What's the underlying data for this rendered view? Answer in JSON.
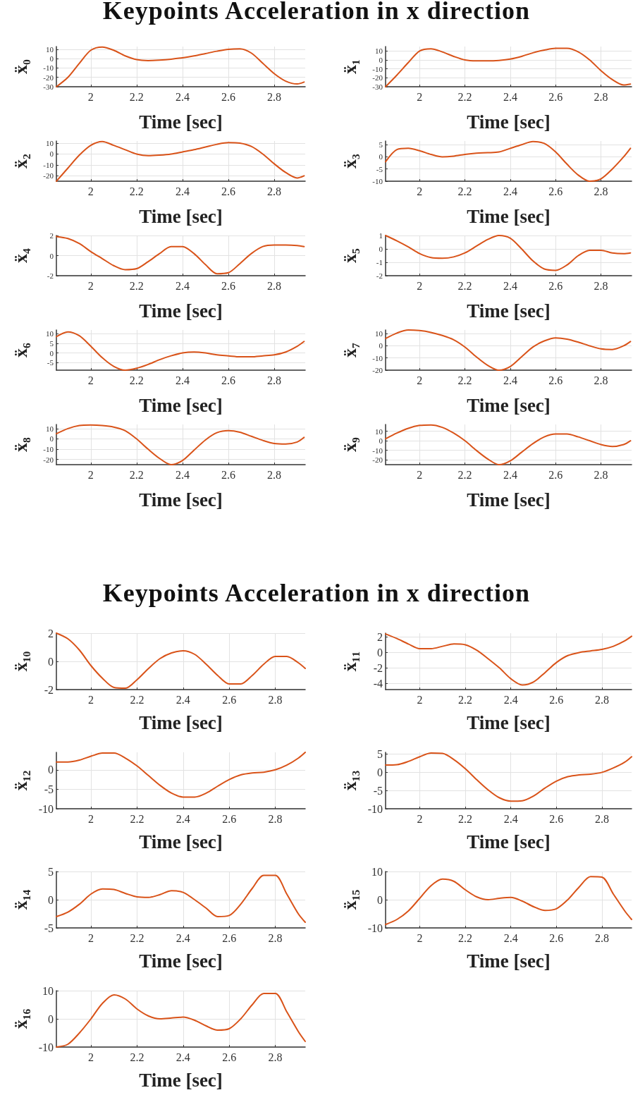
{
  "chart_data": [
    {
      "type": "line",
      "title": "Keypoints Acceleration in x direction",
      "xlabel": "Time [sec]",
      "ylabel": "ẍ₀",
      "x": [
        1.85,
        1.9,
        1.95,
        2.0,
        2.05,
        2.1,
        2.15,
        2.2,
        2.25,
        2.3,
        2.35,
        2.4,
        2.45,
        2.5,
        2.55,
        2.6,
        2.65,
        2.7,
        2.75,
        2.8,
        2.85,
        2.9,
        2.93
      ],
      "series": [
        {
          "color": "#d95319",
          "values": [
            -30,
            -20,
            -5,
            9,
            12.5,
            9,
            3,
            -1,
            -2,
            -1.5,
            -0.5,
            1,
            3,
            5.5,
            8,
            10,
            10.5,
            6,
            -5,
            -16,
            -24,
            -27,
            -25
          ]
        }
      ],
      "xlim": [
        1.85,
        2.935
      ],
      "xticks": [
        2,
        2.2,
        2.4,
        2.6,
        2.8
      ],
      "ylim": [
        -30,
        13
      ],
      "yticks": [
        -30,
        -20,
        -10,
        0,
        10
      ],
      "grid": true,
      "marker": "none",
      "line_style": "solid"
    },
    {
      "type": "line",
      "xlabel": "Time [sec]",
      "ylabel": "ẍ₁",
      "x": [
        1.85,
        1.9,
        1.95,
        2.0,
        2.05,
        2.1,
        2.15,
        2.2,
        2.25,
        2.3,
        2.35,
        2.4,
        2.45,
        2.5,
        2.55,
        2.6,
        2.65,
        2.7,
        2.75,
        2.8,
        2.85,
        2.9,
        2.93
      ],
      "series": [
        {
          "color": "#d95319",
          "values": [
            -30,
            -17,
            -3,
            10,
            12.5,
            9,
            4,
            0,
            -1,
            -1,
            -0.5,
            1,
            4,
            8,
            11,
            13,
            13,
            9,
            0,
            -12,
            -22,
            -28,
            -27
          ]
        }
      ],
      "xlim": [
        1.85,
        2.935
      ],
      "xticks": [
        2,
        2.2,
        2.4,
        2.6,
        2.8
      ],
      "ylim": [
        -30,
        15
      ],
      "yticks": [
        -30,
        -20,
        -10,
        0,
        10
      ],
      "grid": true,
      "marker": "none",
      "line_style": "solid"
    },
    {
      "type": "line",
      "xlabel": "Time [sec]",
      "ylabel": "ẍ₂",
      "x": [
        1.85,
        1.9,
        1.95,
        2.0,
        2.05,
        2.1,
        2.15,
        2.2,
        2.25,
        2.3,
        2.35,
        2.4,
        2.45,
        2.5,
        2.55,
        2.6,
        2.65,
        2.7,
        2.75,
        2.8,
        2.85,
        2.9,
        2.93
      ],
      "series": [
        {
          "color": "#d95319",
          "values": [
            -25,
            -13,
            -1,
            8,
            11.5,
            8,
            4,
            0,
            -1.5,
            -1,
            0,
            2,
            4,
            6.5,
            9,
            10.5,
            10,
            7,
            0,
            -9,
            -17,
            -22,
            -20
          ]
        }
      ],
      "xlim": [
        1.85,
        2.935
      ],
      "xticks": [
        2,
        2.2,
        2.4,
        2.6,
        2.8
      ],
      "ylim": [
        -25,
        12
      ],
      "yticks": [
        -20,
        -10,
        0,
        10
      ],
      "grid": true,
      "marker": "none",
      "line_style": "solid"
    },
    {
      "type": "line",
      "xlabel": "Time [sec]",
      "ylabel": "ẍ₃",
      "x": [
        1.85,
        1.9,
        1.95,
        2.0,
        2.05,
        2.1,
        2.15,
        2.2,
        2.25,
        2.3,
        2.35,
        2.4,
        2.45,
        2.5,
        2.55,
        2.6,
        2.65,
        2.7,
        2.75,
        2.8,
        2.85,
        2.9,
        2.93
      ],
      "series": [
        {
          "color": "#d95319",
          "values": [
            -2,
            3,
            3.5,
            2.5,
            1,
            0,
            0.3,
            1,
            1.5,
            1.7,
            2,
            3.5,
            5,
            6.3,
            5.5,
            2,
            -3,
            -7.5,
            -10,
            -9,
            -5,
            0,
            3.5
          ]
        }
      ],
      "xlim": [
        1.85,
        2.935
      ],
      "xticks": [
        2,
        2.2,
        2.4,
        2.6,
        2.8
      ],
      "ylim": [
        -10,
        6.5
      ],
      "yticks": [
        -10,
        -5,
        0,
        5
      ],
      "grid": true,
      "marker": "none",
      "line_style": "solid"
    },
    {
      "type": "line",
      "xlabel": "Time [sec]",
      "ylabel": "ẍ₄",
      "x": [
        1.85,
        1.9,
        1.95,
        2.0,
        2.05,
        2.1,
        2.15,
        2.2,
        2.25,
        2.3,
        2.35,
        2.4,
        2.45,
        2.5,
        2.55,
        2.6,
        2.65,
        2.7,
        2.75,
        2.8,
        2.85,
        2.9,
        2.93
      ],
      "series": [
        {
          "color": "#d95319",
          "values": [
            1.9,
            1.7,
            1.2,
            0.4,
            -0.3,
            -1,
            -1.4,
            -1.3,
            -0.6,
            0.2,
            0.9,
            0.9,
            0.2,
            -0.9,
            -1.8,
            -1.7,
            -0.8,
            0.2,
            0.9,
            1.05,
            1.05,
            1,
            0.9
          ]
        }
      ],
      "xlim": [
        1.85,
        2.935
      ],
      "xticks": [
        2,
        2.2,
        2.4,
        2.6,
        2.8
      ],
      "ylim": [
        -2,
        2
      ],
      "yticks": [
        -2,
        0,
        2
      ],
      "grid": true,
      "marker": "none",
      "line_style": "solid"
    },
    {
      "type": "line",
      "xlabel": "Time [sec]",
      "ylabel": "ẍ₅",
      "x": [
        1.85,
        1.9,
        1.95,
        2.0,
        2.05,
        2.1,
        2.15,
        2.2,
        2.25,
        2.3,
        2.35,
        2.4,
        2.45,
        2.5,
        2.55,
        2.6,
        2.65,
        2.7,
        2.75,
        2.8,
        2.85,
        2.9,
        2.93
      ],
      "series": [
        {
          "color": "#d95319",
          "values": [
            1,
            0.6,
            0.15,
            -0.35,
            -0.65,
            -0.7,
            -0.6,
            -0.3,
            0.2,
            0.7,
            1,
            0.8,
            0,
            -0.9,
            -1.5,
            -1.6,
            -1.2,
            -0.5,
            -0.1,
            -0.1,
            -0.3,
            -0.35,
            -0.3
          ]
        }
      ],
      "xlim": [
        1.85,
        2.935
      ],
      "xticks": [
        2,
        2.2,
        2.4,
        2.6,
        2.8
      ],
      "ylim": [
        -2,
        1
      ],
      "yticks": [
        -2,
        -1,
        0,
        1
      ],
      "grid": true,
      "marker": "none",
      "line_style": "solid"
    },
    {
      "type": "line",
      "xlabel": "Time [sec]",
      "ylabel": "ẍ₆",
      "x": [
        1.85,
        1.9,
        1.95,
        2.0,
        2.05,
        2.1,
        2.15,
        2.2,
        2.25,
        2.3,
        2.35,
        2.4,
        2.45,
        2.5,
        2.55,
        2.6,
        2.65,
        2.7,
        2.75,
        2.8,
        2.85,
        2.9,
        2.93
      ],
      "series": [
        {
          "color": "#d95319",
          "values": [
            8.5,
            11,
            9,
            3.5,
            -2.5,
            -7,
            -9,
            -8,
            -6,
            -3.5,
            -1.5,
            0,
            0.5,
            0,
            -1,
            -1.5,
            -2,
            -2,
            -1.5,
            -1,
            0.5,
            3.5,
            6
          ]
        }
      ],
      "xlim": [
        1.85,
        2.935
      ],
      "xticks": [
        2,
        2.2,
        2.4,
        2.6,
        2.8
      ],
      "ylim": [
        -9,
        12
      ],
      "yticks": [
        -5,
        0,
        5,
        10
      ],
      "grid": true,
      "marker": "none",
      "line_style": "solid"
    },
    {
      "type": "line",
      "xlabel": "Time [sec]",
      "ylabel": "ẍ₇",
      "x": [
        1.85,
        1.9,
        1.95,
        2.0,
        2.05,
        2.1,
        2.15,
        2.2,
        2.25,
        2.3,
        2.35,
        2.4,
        2.45,
        2.5,
        2.55,
        2.6,
        2.65,
        2.7,
        2.75,
        2.8,
        2.85,
        2.9,
        2.93
      ],
      "series": [
        {
          "color": "#d95319",
          "values": [
            6,
            10.5,
            13,
            12.5,
            11,
            8.5,
            5,
            -1,
            -9,
            -16,
            -20,
            -17,
            -9,
            -1,
            4,
            6.5,
            5.5,
            3,
            0,
            -2.5,
            -3,
            0,
            3.5
          ]
        }
      ],
      "xlim": [
        1.85,
        2.935
      ],
      "xticks": [
        2,
        2.2,
        2.4,
        2.6,
        2.8
      ],
      "ylim": [
        -20,
        13
      ],
      "yticks": [
        -20,
        -10,
        0,
        10
      ],
      "grid": true,
      "marker": "none",
      "line_style": "solid"
    },
    {
      "type": "line",
      "xlabel": "Time [sec]",
      "ylabel": "ẍ₈",
      "x": [
        1.85,
        1.9,
        1.95,
        2.0,
        2.05,
        2.1,
        2.15,
        2.2,
        2.25,
        2.3,
        2.35,
        2.4,
        2.45,
        2.5,
        2.55,
        2.6,
        2.65,
        2.7,
        2.75,
        2.8,
        2.85,
        2.9,
        2.93
      ],
      "series": [
        {
          "color": "#d95319",
          "values": [
            5,
            10,
            13,
            13.5,
            13,
            11.5,
            8,
            0,
            -10,
            -19,
            -25,
            -21,
            -11,
            -1,
            6,
            8,
            6.5,
            2.5,
            -1.5,
            -4.5,
            -5,
            -3,
            1.5
          ]
        }
      ],
      "xlim": [
        1.85,
        2.935
      ],
      "xticks": [
        2,
        2.2,
        2.4,
        2.6,
        2.8
      ],
      "ylim": [
        -25,
        14
      ],
      "yticks": [
        -20,
        -10,
        0,
        10
      ],
      "grid": true,
      "marker": "none",
      "line_style": "solid"
    },
    {
      "type": "line",
      "xlabel": "Time [sec]",
      "ylabel": "ẍ₉",
      "x": [
        1.85,
        1.9,
        1.95,
        2.0,
        2.05,
        2.1,
        2.15,
        2.2,
        2.25,
        2.3,
        2.35,
        2.4,
        2.45,
        2.5,
        2.55,
        2.6,
        2.65,
        2.7,
        2.75,
        2.8,
        2.85,
        2.9,
        2.93
      ],
      "series": [
        {
          "color": "#d95319",
          "values": [
            2,
            8,
            13,
            16,
            16.5,
            14,
            8,
            0,
            -10,
            -19,
            -25,
            -21,
            -12,
            -3,
            4,
            7,
            7,
            4,
            0,
            -4,
            -6,
            -4,
            0
          ]
        }
      ],
      "xlim": [
        1.85,
        2.935
      ],
      "xticks": [
        2,
        2.2,
        2.4,
        2.6,
        2.8
      ],
      "ylim": [
        -25,
        17
      ],
      "yticks": [
        -20,
        -10,
        0,
        10
      ],
      "grid": true,
      "marker": "none",
      "line_style": "solid"
    },
    {
      "type": "line",
      "title": "Keypoints Acceleration in x direction",
      "xlabel": "Time [sec]",
      "ylabel": "ẍ₁₀",
      "x": [
        1.85,
        1.9,
        1.95,
        2.0,
        2.05,
        2.1,
        2.15,
        2.2,
        2.25,
        2.3,
        2.35,
        2.4,
        2.45,
        2.5,
        2.55,
        2.6,
        2.65,
        2.7,
        2.75,
        2.8,
        2.85,
        2.9,
        2.93
      ],
      "series": [
        {
          "color": "#d95319",
          "values": [
            2,
            1.6,
            0.8,
            -0.3,
            -1.2,
            -1.85,
            -1.9,
            -1.3,
            -0.5,
            0.2,
            0.6,
            0.75,
            0.5,
            -0.2,
            -1,
            -1.6,
            -1.6,
            -1,
            -0.2,
            0.35,
            0.35,
            -0.1,
            -0.5
          ]
        }
      ],
      "xlim": [
        1.85,
        2.93
      ],
      "xticks": [
        2,
        2.2,
        2.4,
        2.6,
        2.8
      ],
      "ylim": [
        -2,
        2
      ],
      "yticks": [
        -2,
        0,
        2
      ],
      "grid": true,
      "marker": "none",
      "line_style": "solid"
    },
    {
      "type": "line",
      "xlabel": "Time [sec]",
      "ylabel": "ẍ₁₁",
      "x": [
        1.85,
        1.9,
        1.95,
        2.0,
        2.05,
        2.1,
        2.15,
        2.2,
        2.25,
        2.3,
        2.35,
        2.4,
        2.45,
        2.5,
        2.55,
        2.6,
        2.65,
        2.7,
        2.75,
        2.8,
        2.85,
        2.9,
        2.93
      ],
      "series": [
        {
          "color": "#d95319",
          "values": [
            2.4,
            1.8,
            1.1,
            0.5,
            0.5,
            0.8,
            1.1,
            1,
            0.3,
            -0.8,
            -2,
            -3.4,
            -4.2,
            -3.8,
            -2.6,
            -1.3,
            -0.4,
            0,
            0.2,
            0.4,
            0.8,
            1.5,
            2.1
          ]
        }
      ],
      "xlim": [
        1.85,
        2.93
      ],
      "xticks": [
        2,
        2.2,
        2.4,
        2.6,
        2.8
      ],
      "ylim": [
        -4.8,
        2.5
      ],
      "yticks": [
        -4,
        -2,
        0,
        2
      ],
      "grid": true,
      "marker": "none",
      "line_style": "solid"
    },
    {
      "type": "line",
      "xlabel": "Time [sec]",
      "ylabel": "ẍ₁₂",
      "x": [
        1.85,
        1.9,
        1.95,
        2.0,
        2.05,
        2.1,
        2.15,
        2.2,
        2.25,
        2.3,
        2.35,
        2.4,
        2.45,
        2.5,
        2.55,
        2.6,
        2.65,
        2.7,
        2.75,
        2.8,
        2.85,
        2.9,
        2.93
      ],
      "series": [
        {
          "color": "#d95319",
          "values": [
            2,
            2,
            2.5,
            3.5,
            4.3,
            4.3,
            3,
            1,
            -1.5,
            -4,
            -6,
            -7,
            -7,
            -6,
            -4.2,
            -2.5,
            -1.3,
            -0.8,
            -0.6,
            0,
            1.2,
            3,
            4.5
          ]
        }
      ],
      "xlim": [
        1.85,
        2.93
      ],
      "xticks": [
        2,
        2.2,
        2.4,
        2.6,
        2.8
      ],
      "ylim": [
        -10,
        4.5
      ],
      "yticks": [
        -10,
        -5,
        0
      ],
      "grid": true,
      "marker": "none",
      "line_style": "solid"
    },
    {
      "type": "line",
      "xlabel": "Time [sec]",
      "ylabel": "ẍ₁₃",
      "x": [
        1.85,
        1.9,
        1.95,
        2.0,
        2.05,
        2.1,
        2.15,
        2.2,
        2.25,
        2.3,
        2.35,
        2.4,
        2.45,
        2.5,
        2.55,
        2.6,
        2.65,
        2.7,
        2.75,
        2.8,
        2.85,
        2.9,
        2.93
      ],
      "series": [
        {
          "color": "#d95319",
          "values": [
            2,
            2.1,
            3,
            4.3,
            5.3,
            5.2,
            3.5,
            1,
            -2,
            -4.8,
            -7,
            -7.9,
            -7.8,
            -6.5,
            -4.3,
            -2.4,
            -1.2,
            -0.7,
            -0.5,
            0,
            1.2,
            2.8,
            4.3
          ]
        }
      ],
      "xlim": [
        1.85,
        2.93
      ],
      "xticks": [
        2,
        2.2,
        2.4,
        2.6,
        2.8
      ],
      "ylim": [
        -10,
        5.5
      ],
      "yticks": [
        -10,
        -5,
        0,
        5
      ],
      "grid": true,
      "marker": "none",
      "line_style": "solid"
    },
    {
      "type": "line",
      "xlabel": "Time [sec]",
      "ylabel": "ẍ₁₄",
      "x": [
        1.85,
        1.9,
        1.95,
        2.0,
        2.05,
        2.1,
        2.15,
        2.2,
        2.25,
        2.3,
        2.35,
        2.4,
        2.45,
        2.5,
        2.55,
        2.6,
        2.65,
        2.7,
        2.75,
        2.8,
        2.85,
        2.9,
        2.93
      ],
      "series": [
        {
          "color": "#d95319",
          "values": [
            -3,
            -2.2,
            -0.8,
            1,
            1.9,
            1.8,
            1.1,
            0.5,
            0.4,
            0.9,
            1.6,
            1.3,
            0,
            -1.5,
            -3,
            -2.8,
            -0.8,
            2,
            4.3,
            4.3,
            1,
            -2.5,
            -4
          ]
        }
      ],
      "xlim": [
        1.85,
        2.93
      ],
      "xticks": [
        2,
        2.2,
        2.4,
        2.6,
        2.8
      ],
      "ylim": [
        -5,
        5
      ],
      "yticks": [
        -5,
        0,
        5
      ],
      "grid": true,
      "marker": "none",
      "line_style": "solid"
    },
    {
      "type": "line",
      "xlabel": "Time [sec]",
      "ylabel": "ẍ₁₅",
      "x": [
        1.85,
        1.9,
        1.95,
        2.0,
        2.05,
        2.1,
        2.15,
        2.2,
        2.25,
        2.3,
        2.35,
        2.4,
        2.45,
        2.5,
        2.55,
        2.6,
        2.65,
        2.7,
        2.75,
        2.8,
        2.85,
        2.9,
        2.93
      ],
      "series": [
        {
          "color": "#d95319",
          "values": [
            -8.8,
            -7,
            -4,
            0.5,
            5,
            7.3,
            6.5,
            3.5,
            1,
            0,
            0.5,
            0.8,
            -0.5,
            -2.5,
            -3.8,
            -3.2,
            0,
            4.5,
            8.2,
            8,
            2,
            -4,
            -7
          ]
        }
      ],
      "xlim": [
        1.85,
        2.93
      ],
      "xticks": [
        2,
        2.2,
        2.4,
        2.6,
        2.8
      ],
      "ylim": [
        -10,
        10
      ],
      "yticks": [
        -10,
        0,
        10
      ],
      "grid": true,
      "marker": "none",
      "line_style": "solid"
    },
    {
      "type": "line",
      "xlabel": "Time [sec]",
      "ylabel": "ẍ₁₆",
      "x": [
        1.85,
        1.9,
        1.95,
        2.0,
        2.05,
        2.1,
        2.15,
        2.2,
        2.25,
        2.3,
        2.35,
        2.4,
        2.45,
        2.5,
        2.55,
        2.6,
        2.65,
        2.7,
        2.75,
        2.8,
        2.85,
        2.9,
        2.93
      ],
      "series": [
        {
          "color": "#d95319",
          "values": [
            -10,
            -9,
            -5,
            0,
            5.5,
            8.5,
            7,
            3.5,
            1,
            0,
            0.3,
            0.6,
            -0.5,
            -2.5,
            -4,
            -3.5,
            0,
            5,
            9,
            9,
            2.5,
            -4.5,
            -8
          ]
        }
      ],
      "xlim": [
        1.85,
        2.93
      ],
      "xticks": [
        2,
        2.2,
        2.4,
        2.6,
        2.8
      ],
      "ylim": [
        -10,
        10
      ],
      "yticks": [
        -10,
        0,
        10
      ],
      "grid": true,
      "marker": "none",
      "line_style": "solid"
    }
  ]
}
